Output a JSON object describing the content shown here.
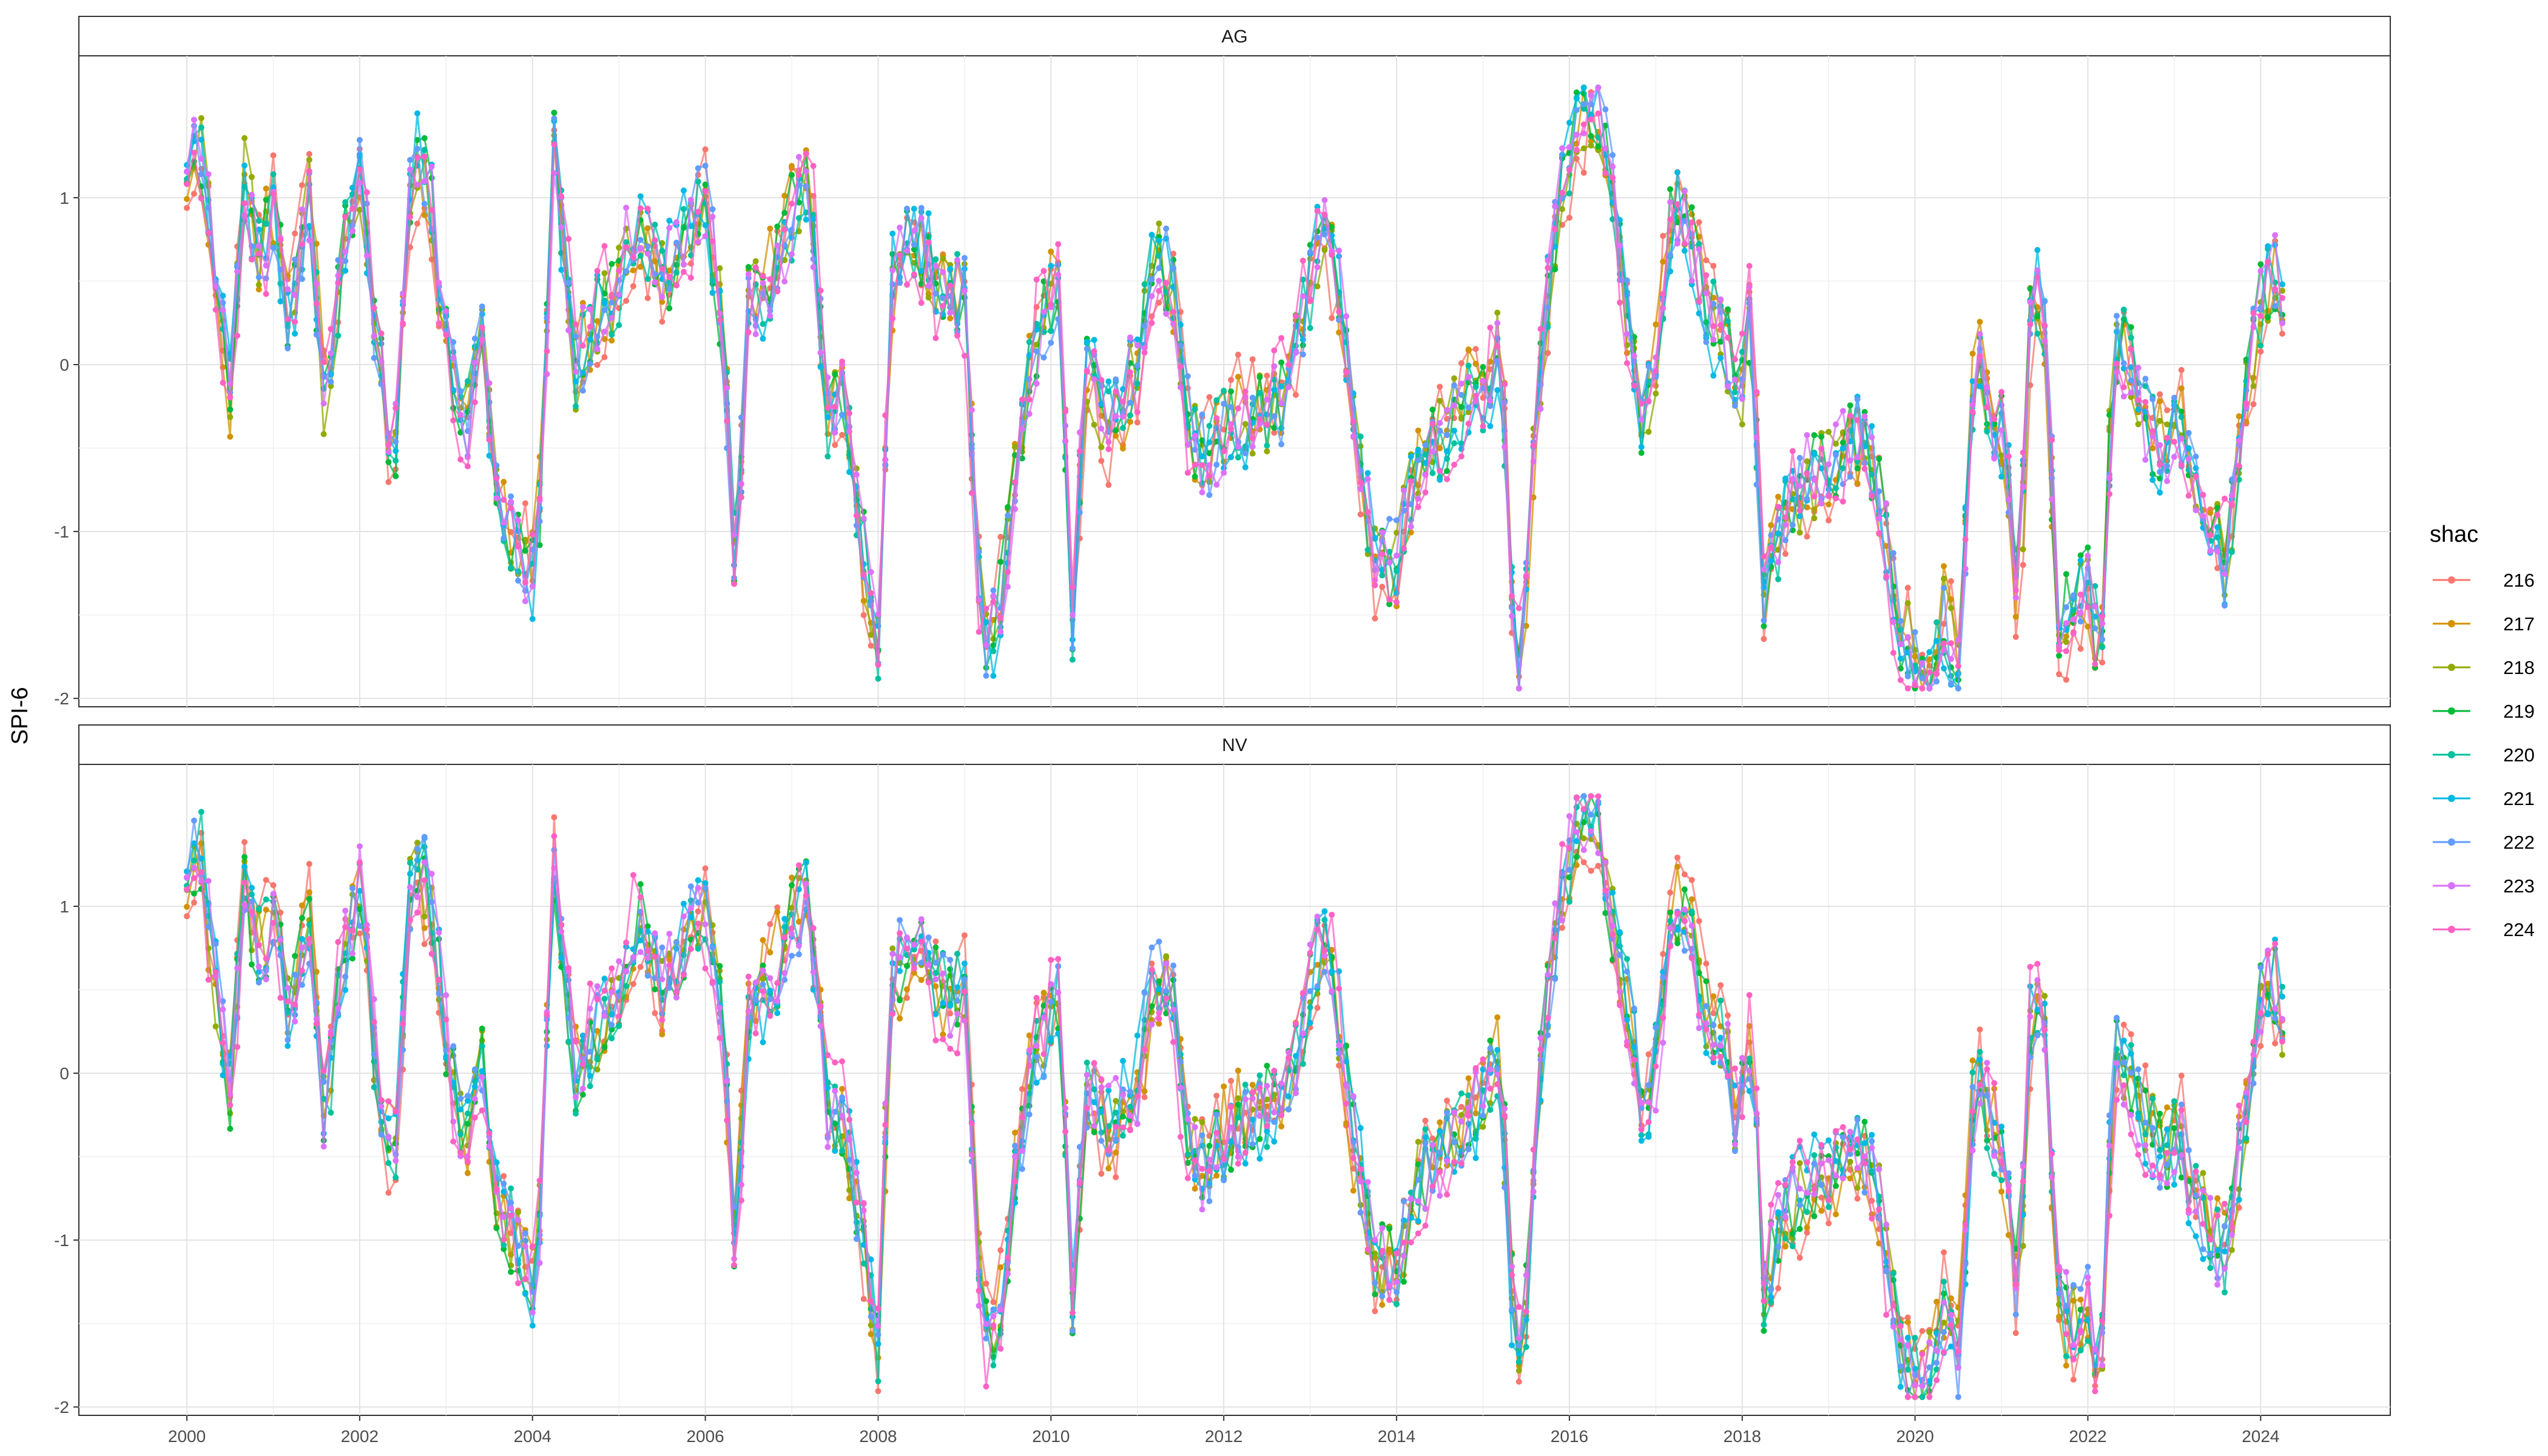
{
  "chart_data": {
    "type": "line",
    "ylabel": "SPI-6",
    "xlabel": "",
    "ylim": [
      -2.05,
      1.85
    ],
    "xlim": [
      1998.75,
      2025.5
    ],
    "y_ticks": [
      -2,
      -1,
      0,
      1
    ],
    "y_tick_labels": [
      "-2",
      "-1",
      "0",
      "1"
    ],
    "x_ticks": [
      2000,
      2002,
      2004,
      2006,
      2008,
      2010,
      2012,
      2014,
      2016,
      2018,
      2020,
      2022,
      2024
    ],
    "x_tick_labels": [
      "2000",
      "2002",
      "2004",
      "2006",
      "2008",
      "2010",
      "2012",
      "2014",
      "2016",
      "2018",
      "2020",
      "2022",
      "2024"
    ],
    "grid": true,
    "legend": {
      "title": "shac",
      "position": "right"
    },
    "facets": [
      {
        "label": "AG",
        "anchors": [
          [
            2000.0,
            1.2
          ],
          [
            2000.17,
            1.3
          ],
          [
            2000.33,
            0.55
          ],
          [
            2000.5,
            -0.2
          ],
          [
            2000.67,
            1.1
          ],
          [
            2000.83,
            0.6
          ],
          [
            2001.0,
            0.9
          ],
          [
            2001.2,
            0.2
          ],
          [
            2001.4,
            1.1
          ],
          [
            2001.6,
            -0.3
          ],
          [
            2001.8,
            0.7
          ],
          [
            2002.0,
            1.2
          ],
          [
            2002.2,
            0.1
          ],
          [
            2002.4,
            -0.6
          ],
          [
            2002.6,
            1.2
          ],
          [
            2002.8,
            1.1
          ],
          [
            2003.0,
            0.1
          ],
          [
            2003.2,
            -0.5
          ],
          [
            2003.4,
            0.2
          ],
          [
            2003.6,
            -0.8
          ],
          [
            2003.9,
            -1.2
          ],
          [
            2004.05,
            -1.3
          ],
          [
            2004.25,
            1.3
          ],
          [
            2004.5,
            0.0
          ],
          [
            2004.75,
            0.3
          ],
          [
            2005.0,
            0.5
          ],
          [
            2005.2,
            0.9
          ],
          [
            2005.5,
            0.5
          ],
          [
            2005.8,
            0.8
          ],
          [
            2006.0,
            1.0
          ],
          [
            2006.2,
            0.2
          ],
          [
            2006.35,
            -1.3
          ],
          [
            2006.5,
            0.4
          ],
          [
            2006.75,
            0.5
          ],
          [
            2007.0,
            0.9
          ],
          [
            2007.2,
            1.2
          ],
          [
            2007.4,
            -0.3
          ],
          [
            2007.6,
            -0.2
          ],
          [
            2007.8,
            -1.0
          ],
          [
            2008.0,
            -1.7
          ],
          [
            2008.15,
            0.5
          ],
          [
            2008.35,
            0.8
          ],
          [
            2008.6,
            0.6
          ],
          [
            2008.8,
            0.4
          ],
          [
            2009.0,
            0.4
          ],
          [
            2009.2,
            -1.7
          ],
          [
            2009.4,
            -1.5
          ],
          [
            2009.6,
            -0.6
          ],
          [
            2009.8,
            0.1
          ],
          [
            2010.0,
            0.4
          ],
          [
            2010.1,
            0.5
          ],
          [
            2010.25,
            -1.5
          ],
          [
            2010.4,
            0.0
          ],
          [
            2010.7,
            -0.4
          ],
          [
            2011.0,
            0.0
          ],
          [
            2011.2,
            0.6
          ],
          [
            2011.4,
            0.5
          ],
          [
            2011.6,
            -0.4
          ],
          [
            2011.8,
            -0.6
          ],
          [
            2012.0,
            -0.4
          ],
          [
            2012.2,
            -0.3
          ],
          [
            2012.4,
            -0.3
          ],
          [
            2012.7,
            -0.2
          ],
          [
            2013.0,
            0.5
          ],
          [
            2013.15,
            0.9
          ],
          [
            2013.3,
            0.6
          ],
          [
            2013.5,
            -0.3
          ],
          [
            2013.75,
            -1.2
          ],
          [
            2014.0,
            -1.2
          ],
          [
            2014.3,
            -0.5
          ],
          [
            2014.6,
            -0.4
          ],
          [
            2014.9,
            -0.2
          ],
          [
            2015.0,
            -0.2
          ],
          [
            2015.2,
            0.2
          ],
          [
            2015.35,
            -1.6
          ],
          [
            2015.45,
            -1.9
          ],
          [
            2015.6,
            -0.4
          ],
          [
            2015.8,
            0.7
          ],
          [
            2016.0,
            1.3
          ],
          [
            2016.15,
            1.5
          ],
          [
            2016.3,
            1.6
          ],
          [
            2016.5,
            1.0
          ],
          [
            2016.7,
            0.2
          ],
          [
            2016.85,
            -0.4
          ],
          [
            2017.0,
            0.0
          ],
          [
            2017.2,
            1.0
          ],
          [
            2017.4,
            0.8
          ],
          [
            2017.6,
            0.3
          ],
          [
            2017.8,
            0.2
          ],
          [
            2017.95,
            -0.3
          ],
          [
            2018.1,
            0.3
          ],
          [
            2018.25,
            -1.4
          ],
          [
            2018.5,
            -0.8
          ],
          [
            2018.75,
            -0.7
          ],
          [
            2019.0,
            -0.6
          ],
          [
            2019.2,
            -0.5
          ],
          [
            2019.4,
            -0.4
          ],
          [
            2019.6,
            -0.8
          ],
          [
            2019.8,
            -1.6
          ],
          [
            2020.0,
            -1.8
          ],
          [
            2020.2,
            -1.9
          ],
          [
            2020.35,
            -1.5
          ],
          [
            2020.5,
            -1.8
          ],
          [
            2020.7,
            0.1
          ],
          [
            2020.9,
            -0.3
          ],
          [
            2021.05,
            -0.5
          ],
          [
            2021.2,
            -1.5
          ],
          [
            2021.35,
            0.5
          ],
          [
            2021.5,
            0.3
          ],
          [
            2021.65,
            -1.5
          ],
          [
            2021.8,
            -1.5
          ],
          [
            2022.0,
            -1.3
          ],
          [
            2022.15,
            -1.8
          ],
          [
            2022.3,
            0.1
          ],
          [
            2022.5,
            0.0
          ],
          [
            2022.7,
            -0.4
          ],
          [
            2022.9,
            -0.5
          ],
          [
            2023.05,
            -0.3
          ],
          [
            2023.2,
            -0.7
          ],
          [
            2023.4,
            -0.9
          ],
          [
            2023.6,
            -1.2
          ],
          [
            2023.8,
            -0.3
          ],
          [
            2024.0,
            0.4
          ],
          [
            2024.15,
            0.6
          ],
          [
            2024.3,
            0.2
          ]
        ]
      },
      {
        "label": "NV",
        "anchors": [
          [
            2000.0,
            1.2
          ],
          [
            2000.17,
            1.3
          ],
          [
            2000.33,
            0.5
          ],
          [
            2000.5,
            -0.1
          ],
          [
            2000.67,
            1.1
          ],
          [
            2000.83,
            0.7
          ],
          [
            2001.0,
            0.9
          ],
          [
            2001.2,
            0.3
          ],
          [
            2001.4,
            1.0
          ],
          [
            2001.6,
            -0.3
          ],
          [
            2001.8,
            0.7
          ],
          [
            2002.0,
            1.1
          ],
          [
            2002.2,
            0.0
          ],
          [
            2002.4,
            -0.5
          ],
          [
            2002.6,
            1.2
          ],
          [
            2002.8,
            1.1
          ],
          [
            2003.0,
            0.2
          ],
          [
            2003.2,
            -0.5
          ],
          [
            2003.4,
            0.1
          ],
          [
            2003.6,
            -0.8
          ],
          [
            2003.9,
            -1.1
          ],
          [
            2004.05,
            -1.3
          ],
          [
            2004.25,
            1.2
          ],
          [
            2004.5,
            0.0
          ],
          [
            2004.75,
            0.3
          ],
          [
            2005.0,
            0.4
          ],
          [
            2005.2,
            1.0
          ],
          [
            2005.5,
            0.5
          ],
          [
            2005.8,
            0.8
          ],
          [
            2006.0,
            1.0
          ],
          [
            2006.2,
            0.3
          ],
          [
            2006.35,
            -1.2
          ],
          [
            2006.5,
            0.4
          ],
          [
            2006.75,
            0.5
          ],
          [
            2007.0,
            0.9
          ],
          [
            2007.2,
            1.1
          ],
          [
            2007.4,
            -0.2
          ],
          [
            2007.6,
            -0.3
          ],
          [
            2007.8,
            -0.9
          ],
          [
            2008.0,
            -1.6
          ],
          [
            2008.15,
            0.5
          ],
          [
            2008.35,
            0.8
          ],
          [
            2008.6,
            0.6
          ],
          [
            2008.8,
            0.4
          ],
          [
            2009.0,
            0.5
          ],
          [
            2009.2,
            -1.6
          ],
          [
            2009.4,
            -1.5
          ],
          [
            2009.6,
            -0.5
          ],
          [
            2009.8,
            0.1
          ],
          [
            2010.0,
            0.3
          ],
          [
            2010.1,
            0.5
          ],
          [
            2010.25,
            -1.4
          ],
          [
            2010.4,
            -0.1
          ],
          [
            2010.7,
            -0.3
          ],
          [
            2011.0,
            -0.1
          ],
          [
            2011.2,
            0.6
          ],
          [
            2011.4,
            0.5
          ],
          [
            2011.6,
            -0.5
          ],
          [
            2011.8,
            -0.6
          ],
          [
            2012.0,
            -0.4
          ],
          [
            2012.2,
            -0.3
          ],
          [
            2012.4,
            -0.2
          ],
          [
            2012.7,
            -0.2
          ],
          [
            2013.0,
            0.5
          ],
          [
            2013.15,
            0.9
          ],
          [
            2013.3,
            0.5
          ],
          [
            2013.5,
            -0.4
          ],
          [
            2013.75,
            -1.1
          ],
          [
            2014.0,
            -1.2
          ],
          [
            2014.3,
            -0.6
          ],
          [
            2014.6,
            -0.4
          ],
          [
            2014.9,
            -0.2
          ],
          [
            2015.0,
            -0.1
          ],
          [
            2015.2,
            0.1
          ],
          [
            2015.35,
            -1.5
          ],
          [
            2015.45,
            -1.9
          ],
          [
            2015.6,
            -0.3
          ],
          [
            2015.8,
            0.7
          ],
          [
            2016.0,
            1.3
          ],
          [
            2016.15,
            1.5
          ],
          [
            2016.3,
            1.6
          ],
          [
            2016.5,
            0.9
          ],
          [
            2016.7,
            0.3
          ],
          [
            2016.85,
            -0.3
          ],
          [
            2017.0,
            0.0
          ],
          [
            2017.2,
            1.0
          ],
          [
            2017.4,
            0.8
          ],
          [
            2017.6,
            0.3
          ],
          [
            2017.8,
            0.2
          ],
          [
            2017.95,
            -0.3
          ],
          [
            2018.1,
            0.2
          ],
          [
            2018.25,
            -1.3
          ],
          [
            2018.5,
            -0.8
          ],
          [
            2018.75,
            -0.7
          ],
          [
            2019.0,
            -0.6
          ],
          [
            2019.2,
            -0.5
          ],
          [
            2019.4,
            -0.5
          ],
          [
            2019.6,
            -0.8
          ],
          [
            2019.8,
            -1.6
          ],
          [
            2020.0,
            -1.8
          ],
          [
            2020.2,
            -1.8
          ],
          [
            2020.35,
            -1.4
          ],
          [
            2020.5,
            -1.7
          ],
          [
            2020.7,
            0.1
          ],
          [
            2020.9,
            -0.3
          ],
          [
            2021.05,
            -0.6
          ],
          [
            2021.2,
            -1.4
          ],
          [
            2021.35,
            0.5
          ],
          [
            2021.5,
            0.3
          ],
          [
            2021.65,
            -1.4
          ],
          [
            2021.8,
            -1.5
          ],
          [
            2022.0,
            -1.4
          ],
          [
            2022.15,
            -1.8
          ],
          [
            2022.3,
            0.1
          ],
          [
            2022.5,
            0.0
          ],
          [
            2022.7,
            -0.4
          ],
          [
            2022.9,
            -0.5
          ],
          [
            2023.05,
            -0.3
          ],
          [
            2023.2,
            -0.7
          ],
          [
            2023.4,
            -0.9
          ],
          [
            2023.6,
            -1.1
          ],
          [
            2023.8,
            -0.3
          ],
          [
            2024.0,
            0.4
          ],
          [
            2024.15,
            0.6
          ],
          [
            2024.3,
            0.2
          ]
        ]
      }
    ],
    "series": [
      {
        "name": "216",
        "color": "#F8766D",
        "offset": 0.2,
        "seed": 11
      },
      {
        "name": "217",
        "color": "#D39200",
        "offset": 0.1,
        "seed": 23
      },
      {
        "name": "218",
        "color": "#93AA00",
        "offset": 0.05,
        "seed": 37
      },
      {
        "name": "219",
        "color": "#00BA38",
        "offset": 0.0,
        "seed": 41
      },
      {
        "name": "220",
        "color": "#00C19F",
        "offset": -0.05,
        "seed": 53
      },
      {
        "name": "221",
        "color": "#00B9E3",
        "offset": -0.1,
        "seed": 67
      },
      {
        "name": "222",
        "color": "#619CFF",
        "offset": -0.05,
        "seed": 79
      },
      {
        "name": "223",
        "color": "#DB72FB",
        "offset": 0.05,
        "seed": 83
      },
      {
        "name": "224",
        "color": "#FF61C3",
        "offset": 0.15,
        "seed": 97
      }
    ]
  }
}
